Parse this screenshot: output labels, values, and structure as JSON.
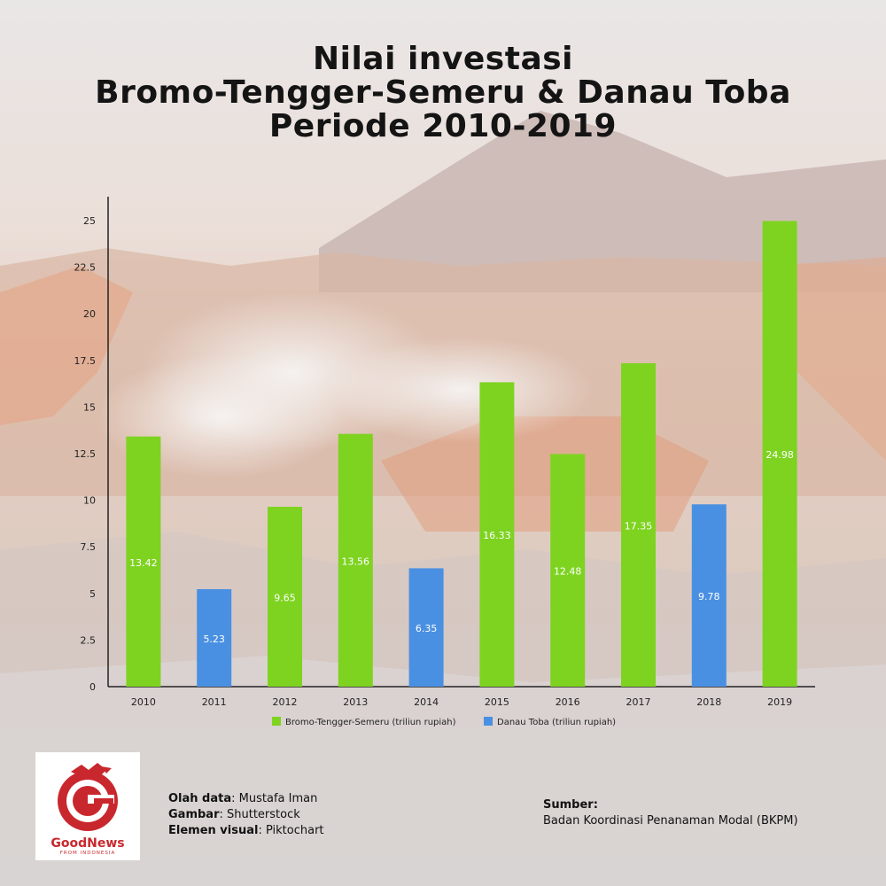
{
  "title": {
    "line1": "Nilai investasi",
    "line2": "Bromo-Tengger-Semeru & Danau Toba",
    "line3": "Periode 2010-2019"
  },
  "chart_data": {
    "type": "bar",
    "categories": [
      "2010",
      "2011",
      "2012",
      "2013",
      "2014",
      "2015",
      "2016",
      "2017",
      "2018",
      "2019"
    ],
    "values": [
      13.42,
      5.23,
      9.65,
      13.56,
      6.35,
      16.33,
      12.48,
      17.35,
      9.78,
      24.98
    ],
    "value_labels": [
      "13.42",
      "5.23",
      "9.65",
      "13.56",
      "6.35",
      "16.33",
      "12.48",
      "17.35",
      "9.78",
      "24.98"
    ],
    "bar_series": [
      "Bromo-Tengger-Semeru (triliun rupiah)",
      "Danau Toba (triliun rupiah)",
      "Bromo-Tengger-Semeru (triliun rupiah)",
      "Bromo-Tengger-Semeru (triliun rupiah)",
      "Danau Toba (triliun rupiah)",
      "Bromo-Tengger-Semeru (triliun rupiah)",
      "Bromo-Tengger-Semeru (triliun rupiah)",
      "Bromo-Tengger-Semeru (triliun rupiah)",
      "Danau Toba (triliun rupiah)",
      "Bromo-Tengger-Semeru (triliun rupiah)"
    ],
    "series": [
      {
        "name": "Bromo-Tengger-Semeru (triliun rupiah)",
        "color": "#7ed321"
      },
      {
        "name": "Danau Toba (triliun rupiah)",
        "color": "#4a90e2"
      }
    ],
    "y_ticks": [
      "0",
      "2.5",
      "5",
      "7.5",
      "10",
      "12.5",
      "15",
      "17.5",
      "20",
      "22.5",
      "25"
    ],
    "ylim": [
      0,
      25
    ],
    "grid": false,
    "legend_position": "bottom"
  },
  "credits": {
    "data_label": "Olah data",
    "data_value": ": Mustafa Iman",
    "image_label": "Gambar",
    "image_value": ": Shutterstock",
    "visual_label": "Elemen visual",
    "visual_value": ": Piktochart"
  },
  "source": {
    "label": "Sumber:",
    "value": "Badan Koordinasi Penanaman Modal (BKPM)"
  },
  "logo": {
    "name": "GoodNews",
    "tagline": "FROM INDONESIA",
    "icon": "garuda-g-icon",
    "color": "#c8282d"
  }
}
